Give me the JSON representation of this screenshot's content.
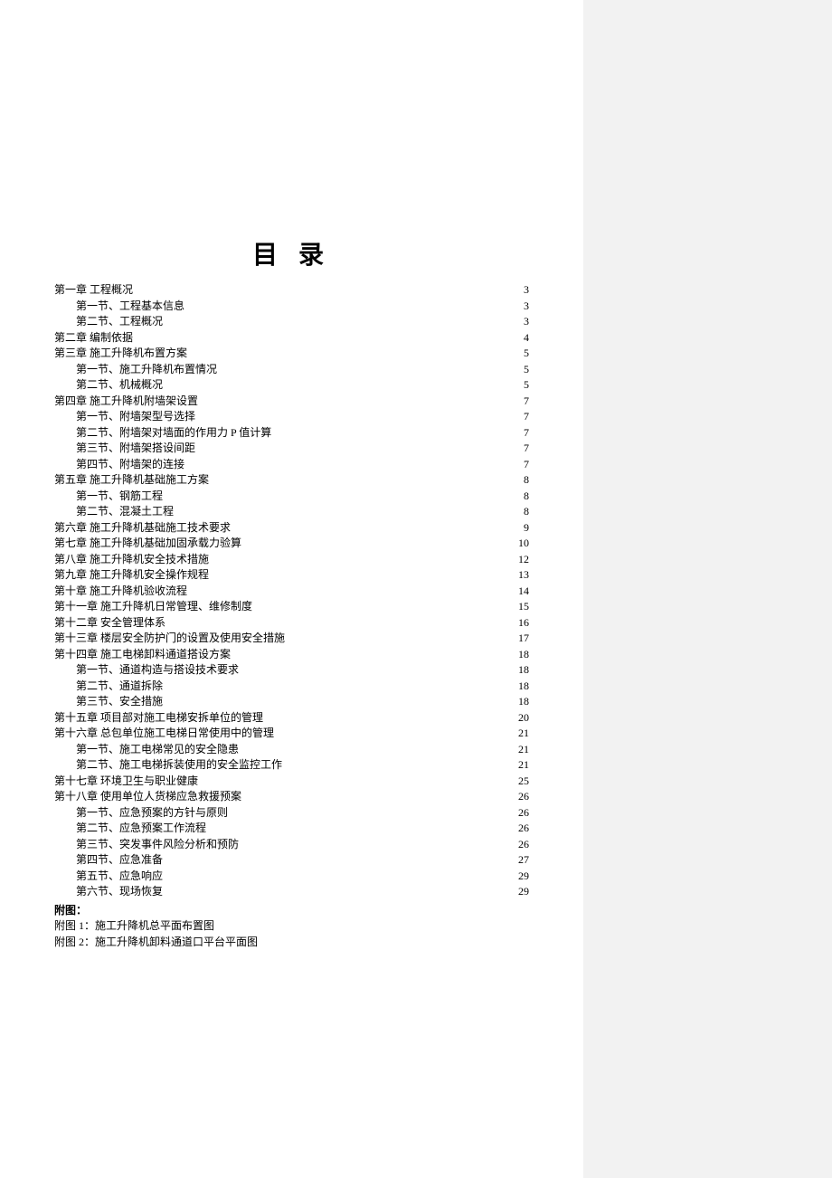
{
  "title": "目 录",
  "toc": [
    {
      "level": 1,
      "label": "第一章 工程概况",
      "page": "3"
    },
    {
      "level": 2,
      "label": "第一节、工程基本信息",
      "page": "3"
    },
    {
      "level": 2,
      "label": "第二节、工程概况",
      "page": "3"
    },
    {
      "level": 1,
      "label": "第二章 编制依据",
      "page": "4"
    },
    {
      "level": 1,
      "label": "第三章 施工升降机布置方案",
      "page": "5"
    },
    {
      "level": 2,
      "label": "第一节、施工升降机布置情况",
      "page": "5"
    },
    {
      "level": 2,
      "label": "第二节、机械概况",
      "page": "5"
    },
    {
      "level": 1,
      "label": "第四章 施工升降机附墙架设置",
      "page": "7"
    },
    {
      "level": 2,
      "label": "第一节、附墙架型号选择",
      "page": "7"
    },
    {
      "level": 2,
      "label": "第二节、附墙架对墙面的作用力 P 值计算 ",
      "page": "7"
    },
    {
      "level": 2,
      "label": "第三节、附墙架搭设间距",
      "page": "7"
    },
    {
      "level": 2,
      "label": "第四节、附墙架的连接",
      "page": "7"
    },
    {
      "level": 1,
      "label": "第五章 施工升降机基础施工方案",
      "page": "8"
    },
    {
      "level": 2,
      "label": "第一节、钢筋工程",
      "page": "8"
    },
    {
      "level": 2,
      "label": "第二节、混凝土工程",
      "page": "8"
    },
    {
      "level": 1,
      "label": "第六章 施工升降机基础施工技术要求",
      "page": "9"
    },
    {
      "level": 1,
      "label": "第七章 施工升降机基础加固承载力验算",
      "page": "10"
    },
    {
      "level": 1,
      "label": "第八章 施工升降机安全技术措施",
      "page": "12"
    },
    {
      "level": 1,
      "label": "第九章 施工升降机安全操作规程",
      "page": "13"
    },
    {
      "level": 1,
      "label": "第十章 施工升降机验收流程",
      "page": "14"
    },
    {
      "level": 1,
      "label": "第十一章 施工升降机日常管理、维修制度",
      "page": "15"
    },
    {
      "level": 1,
      "label": "第十二章 安全管理体系",
      "page": "16"
    },
    {
      "level": 1,
      "label": "第十三章 楼层安全防护门的设置及使用安全措施",
      "page": "17"
    },
    {
      "level": 1,
      "label": "第十四章 施工电梯卸料通道搭设方案",
      "page": "18"
    },
    {
      "level": 2,
      "label": "第一节、通道构造与搭设技术要求",
      "page": "18"
    },
    {
      "level": 2,
      "label": "第二节、通道拆除",
      "page": "18"
    },
    {
      "level": 2,
      "label": "第三节、安全措施",
      "page": "18"
    },
    {
      "level": 1,
      "label": "第十五章 项目部对施工电梯安拆单位的管理",
      "page": "20"
    },
    {
      "level": 1,
      "label": "第十六章 总包单位施工电梯日常使用中的管理",
      "page": "21"
    },
    {
      "level": 2,
      "label": "第一节、施工电梯常见的安全隐患",
      "page": "21"
    },
    {
      "level": 2,
      "label": "第二节、施工电梯拆装使用的安全监控工作",
      "page": "21"
    },
    {
      "level": 1,
      "label": "第十七章 环境卫生与职业健康",
      "page": "25"
    },
    {
      "level": 1,
      "label": "第十八章 使用单位人货梯应急救援预案",
      "page": "26"
    },
    {
      "level": 2,
      "label": "第一节、应急预案的方针与原则",
      "page": "26"
    },
    {
      "level": 2,
      "label": "第二节、应急预案工作流程",
      "page": "26"
    },
    {
      "level": 2,
      "label": "第三节、突发事件风险分析和预防",
      "page": "26"
    },
    {
      "level": 2,
      "label": "第四节、应急准备",
      "page": "27"
    },
    {
      "level": 2,
      "label": "第五节、应急响应",
      "page": "29"
    },
    {
      "level": 2,
      "label": "第六节、现场恢复",
      "page": "29"
    }
  ],
  "appendix": {
    "header": "附图：",
    "items": [
      "附图 1：施工升降机总平面布置图",
      "附图 2：施工升降机卸料通道口平台平面图"
    ]
  },
  "colors": {
    "page_bg": "#ffffff",
    "sidebar_bg": "#f2f2f2",
    "text": "#000000"
  }
}
